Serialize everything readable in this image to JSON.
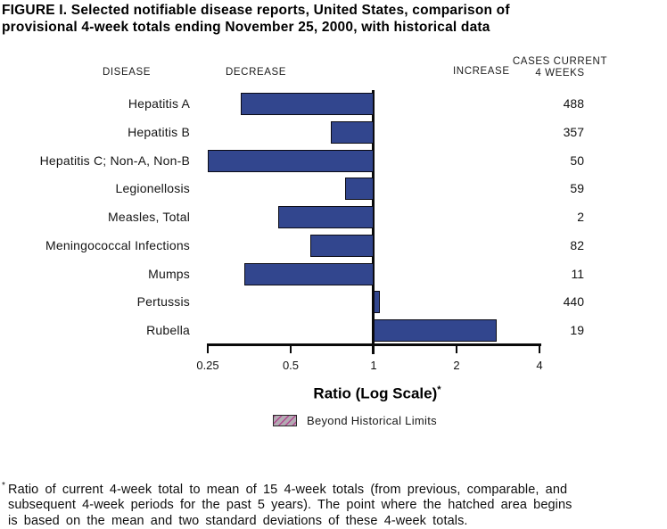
{
  "title": {
    "line1": "FIGURE I.  Selected notifiable disease reports, United States, comparison of",
    "line2": "provisional 4-week totals ending November 25, 2000, with historical data"
  },
  "headers": {
    "disease": "DISEASE",
    "decrease": "DECREASE",
    "increase": "INCREASE",
    "cases_line1": "CASES CURRENT",
    "cases_line2": "4 WEEKS"
  },
  "chart_data": {
    "type": "bar",
    "orientation": "horizontal",
    "scale": "log",
    "baseline_ratio": 1,
    "xlabel": "Ratio (Log Scale)",
    "xlabel_marker": "*",
    "ticks": [
      0.25,
      0.5,
      1,
      2,
      4
    ],
    "tick_labels": [
      "0.25",
      "0.5",
      "1",
      "2",
      "4"
    ],
    "xlim": [
      0.25,
      4
    ],
    "rows": [
      {
        "disease": "Hepatitis A",
        "ratio": 0.33,
        "cases": "488"
      },
      {
        "disease": "Hepatitis B",
        "ratio": 0.7,
        "cases": "357"
      },
      {
        "disease": "Hepatitis C; Non-A, Non-B",
        "ratio": 0.25,
        "cases": "50"
      },
      {
        "disease": "Legionellosis",
        "ratio": 0.79,
        "cases": "59"
      },
      {
        "disease": "Measles, Total",
        "ratio": 0.45,
        "cases": "2"
      },
      {
        "disease": "Meningococcal Infections",
        "ratio": 0.59,
        "cases": "82"
      },
      {
        "disease": "Mumps",
        "ratio": 0.34,
        "cases": "11"
      },
      {
        "disease": "Pertussis",
        "ratio": 1.05,
        "cases": "440"
      },
      {
        "disease": "Rubella",
        "ratio": 2.8,
        "cases": "19"
      }
    ],
    "bar_color": "#32468e",
    "bar_border_color": "#0b0b15",
    "legend": {
      "label": "Beyond Historical Limits",
      "swatch_bg": "#b3abb3",
      "swatch_hatch": "#b1478f",
      "position": "below-x-axis-label"
    },
    "grid": false
  },
  "footnote": {
    "marker": "*",
    "lines": [
      "Ratio of current 4-week total to mean of 15 4-week totals (from previous, comparable, and",
      "subsequent 4-week periods for the past 5 years). The point where the hatched area begins",
      "is based on the mean and two standard deviations of these 4-week totals."
    ]
  }
}
